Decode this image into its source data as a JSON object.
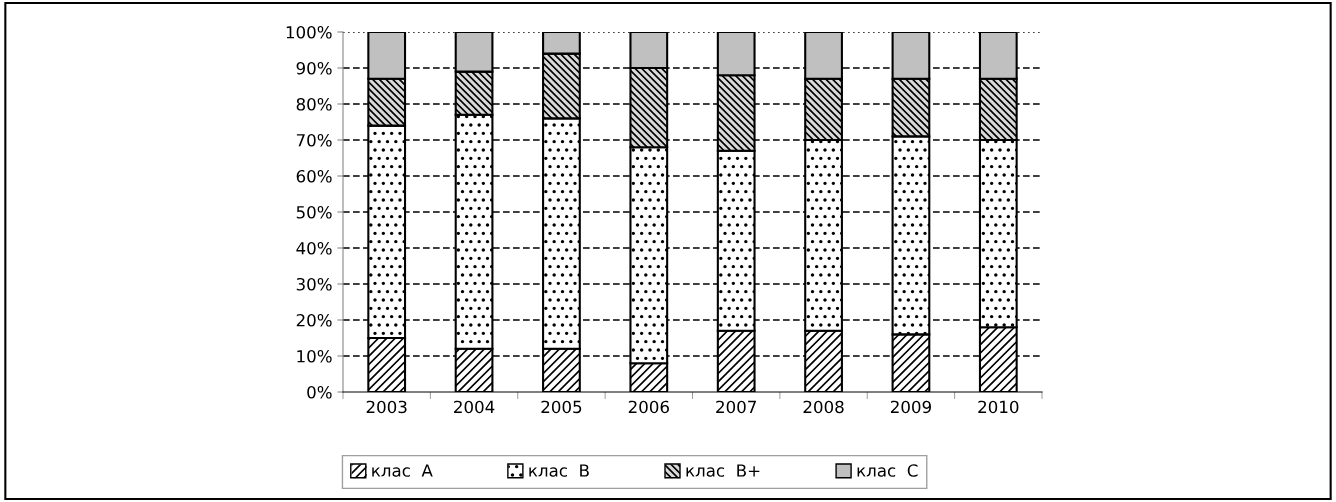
{
  "chart_data": {
    "type": "bar",
    "stacked": true,
    "categories": [
      "2003",
      "2004",
      "2005",
      "2006",
      "2007",
      "2008",
      "2009",
      "2010"
    ],
    "series": [
      {
        "name": "клас  A",
        "color": "#ffffff",
        "values": [
          15,
          12,
          12,
          8,
          17,
          17,
          16,
          18
        ]
      },
      {
        "name": "клас  B",
        "color": "#ffffff",
        "values": [
          59,
          65,
          64,
          60,
          50,
          53,
          55,
          52
        ]
      },
      {
        "name": "клас  B+",
        "color": "#d9d9d9",
        "values": [
          13,
          12,
          18,
          22,
          21,
          17,
          16,
          17
        ]
      },
      {
        "name": "клас  C",
        "color": "#c0c0c0",
        "values": [
          13,
          11,
          6,
          10,
          12,
          13,
          13,
          13
        ]
      }
    ],
    "ylim": [
      0,
      100
    ],
    "yticks": [
      {
        "value": 0,
        "label": "0%"
      },
      {
        "value": 10,
        "label": "10%"
      },
      {
        "value": 20,
        "label": "20%"
      },
      {
        "value": 30,
        "label": "30%"
      },
      {
        "value": 40,
        "label": "40%"
      },
      {
        "value": 50,
        "label": "50%"
      },
      {
        "value": 60,
        "label": "60%"
      },
      {
        "value": 70,
        "label": "70%"
      },
      {
        "value": 80,
        "label": "80%"
      },
      {
        "value": 90,
        "label": "90%"
      },
      {
        "value": 100,
        "label": "100%"
      }
    ],
    "grid": "y",
    "legend": "bottom"
  }
}
